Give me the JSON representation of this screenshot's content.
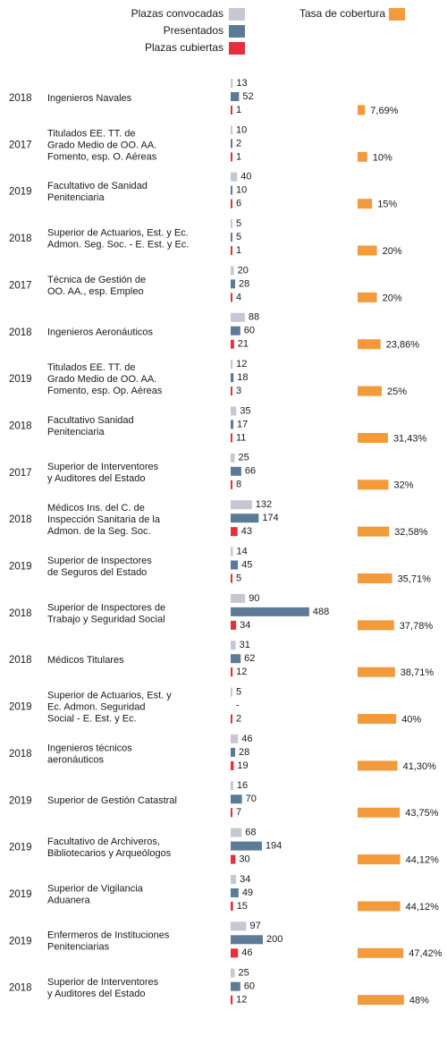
{
  "chart_data": {
    "type": "bar",
    "years": [
      2018,
      2017,
      2019,
      2018,
      2017,
      2018,
      2019,
      2018,
      2017,
      2018,
      2019,
      2018,
      2018,
      2019,
      2018,
      2019,
      2019,
      2019,
      2019,
      2018
    ],
    "categories": [
      [
        "Ingenieros Navales"
      ],
      [
        "Titulados EE. TT. de",
        "Grado Medio de OO. AA.",
        "Fomento, esp. O. Aéreas"
      ],
      [
        "Facultativo de Sanidad",
        "Penitenciaria"
      ],
      [
        "Superior de Actuarios, Est. y Ec.",
        "Admon. Seg. Soc. - E. Est. y Ec."
      ],
      [
        "Técnica de Gestión de",
        "OO. AA., esp. Empleo"
      ],
      [
        "Ingenieros Aeronáuticos"
      ],
      [
        "Titulados EE. TT. de",
        "Grado Medio de OO. AA.",
        "Fomento, esp. Op. Aéreas"
      ],
      [
        "Facultativo Sanidad",
        "Penitenciaria"
      ],
      [
        "Superior de Interventores",
        "y Auditores del Estado"
      ],
      [
        "Médicos Ins. del C. de",
        "Inspección Sanitaria de la",
        "Admon. de la Seg. Soc."
      ],
      [
        "Superior de Inspectores",
        "de Seguros del Estado"
      ],
      [
        "Superior de Inspectores de",
        "Trabajo y Seguridad Social"
      ],
      [
        "Médicos Titulares"
      ],
      [
        "Superior de Actuarios, Est. y",
        "Ec. Admon. Seguridad",
        "Social - E. Est. y Ec."
      ],
      [
        "Ingenieros técnicos",
        "aeronáuticos"
      ],
      [
        "Superior de Gestión Catastral"
      ],
      [
        "Facultativo de Archiveros,",
        "Bibliotecarios y Arqueólogos"
      ],
      [
        "Superior de Vigilancia",
        "Aduanera"
      ],
      [
        "Enfermeros de Instituciones",
        "Penitenciarias"
      ],
      [
        "Superior de Interventores",
        "y Auditores del Estado"
      ]
    ],
    "series": [
      {
        "name": "Plazas convocadas",
        "color": "#c6c7d2",
        "values": [
          13,
          10,
          40,
          5,
          20,
          88,
          12,
          35,
          25,
          132,
          14,
          90,
          31,
          5,
          46,
          16,
          68,
          34,
          97,
          25
        ]
      },
      {
        "name": "Presentados",
        "color": "#5c7b97",
        "values": [
          52,
          2,
          10,
          5,
          28,
          60,
          18,
          17,
          66,
          174,
          45,
          488,
          62,
          null,
          28,
          70,
          194,
          49,
          200,
          60
        ],
        "value_labels": [
          "52",
          "2",
          "10",
          "5",
          "28",
          "60",
          "18",
          "17",
          "66",
          "174",
          "45",
          "488",
          "62",
          "-",
          "28",
          "70",
          "194",
          "49",
          "200",
          "60"
        ]
      },
      {
        "name": "Plazas cubiertas",
        "color": "#e5303b",
        "values": [
          1,
          1,
          6,
          1,
          4,
          21,
          3,
          11,
          8,
          43,
          5,
          34,
          12,
          2,
          19,
          7,
          30,
          15,
          46,
          12
        ]
      }
    ],
    "rate_series": {
      "name": "Tasa de cobertura",
      "color": "#f39a3b",
      "values": [
        7.69,
        10,
        15,
        20,
        20,
        23.86,
        25,
        31.43,
        32,
        32.58,
        35.71,
        37.78,
        38.71,
        40,
        41.3,
        43.75,
        44.12,
        44.12,
        47.42,
        48
      ],
      "value_labels": [
        "7,69%",
        "10%",
        "15%",
        "20%",
        "20%",
        "23,86%",
        "25%",
        "31,43%",
        "32%",
        "32,58%",
        "35,71%",
        "37,78%",
        "38,71%",
        "40%",
        "41,30%",
        "43,75%",
        "44,12%",
        "44,12%",
        "47,42%",
        "48%"
      ]
    }
  }
}
